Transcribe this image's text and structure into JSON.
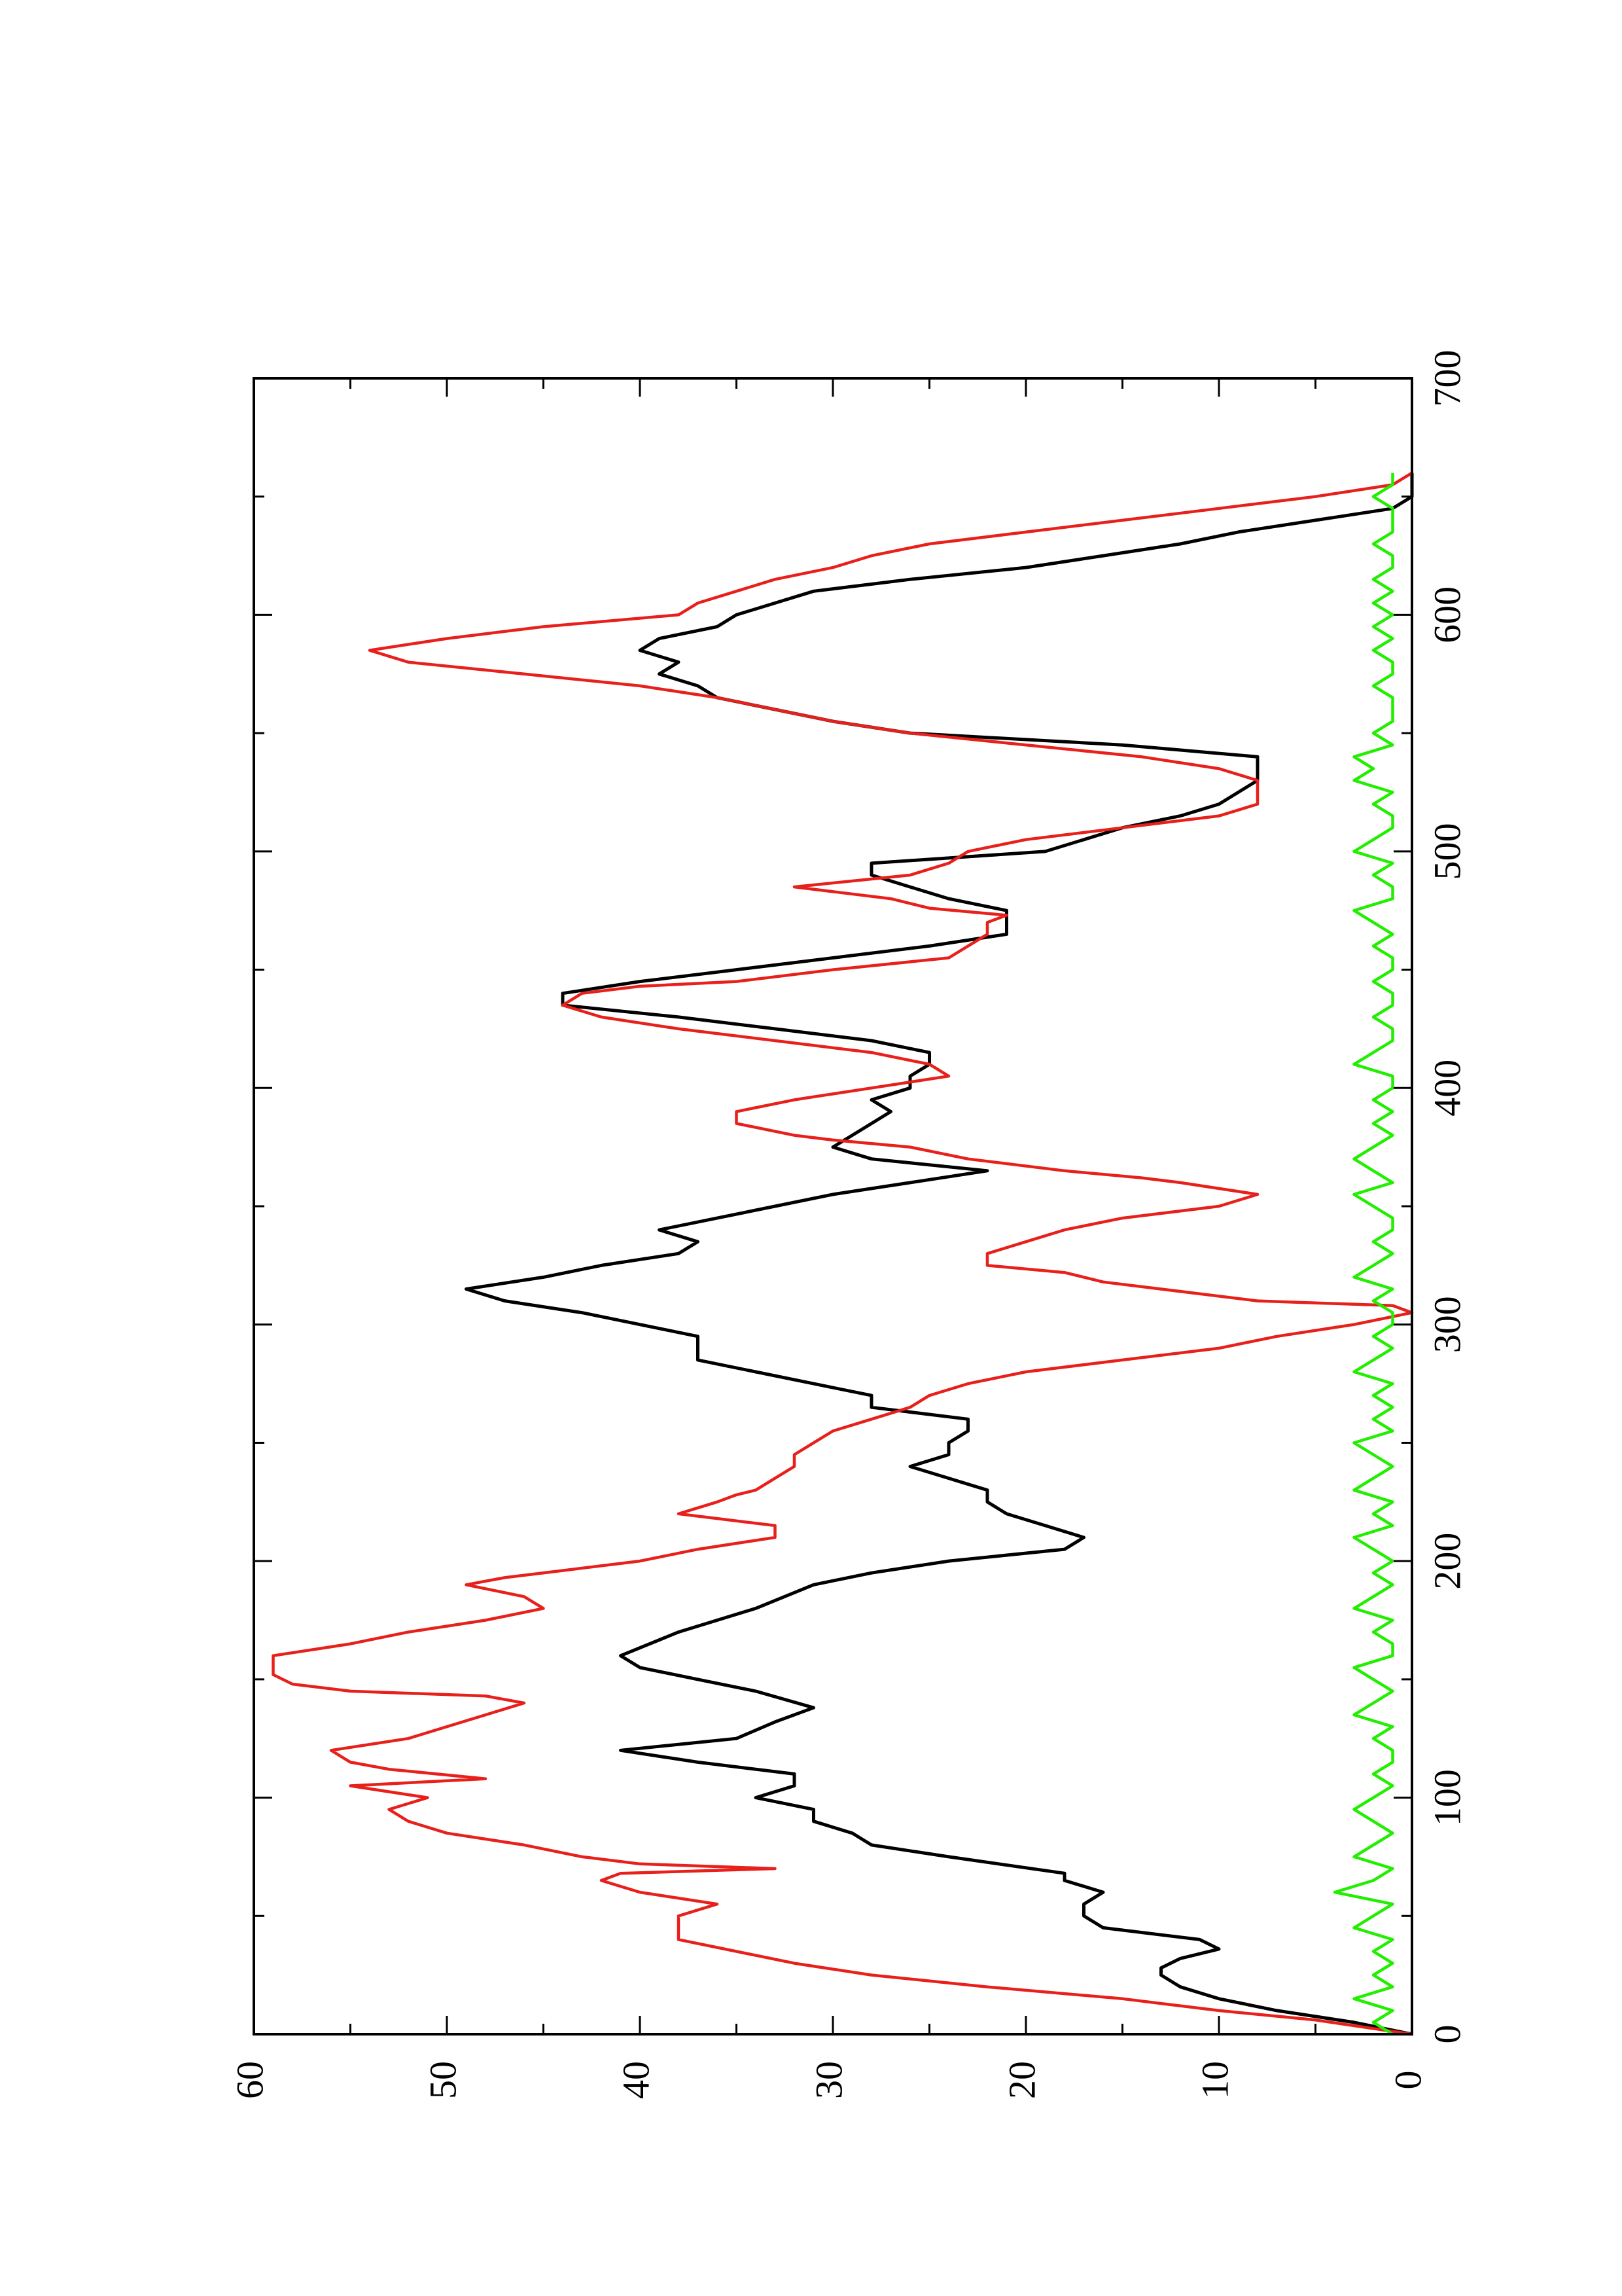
{
  "chart_data": {
    "type": "line",
    "orientation": "rotated-90-ccw",
    "title": "",
    "xlabel": "",
    "ylabel": "",
    "xlim": [
      0,
      700
    ],
    "ylim": [
      0,
      60
    ],
    "x_ticks": [
      0,
      100,
      200,
      300,
      400,
      500,
      600,
      700
    ],
    "x_tick_labels": [
      "0",
      "100",
      "200",
      "300",
      "400",
      "500",
      "600",
      "700"
    ],
    "y_ticks": [
      0,
      10,
      20,
      30,
      40,
      50,
      60
    ],
    "y_tick_labels": [
      "0",
      "10",
      "20",
      "30",
      "40",
      "50",
      "60"
    ],
    "grid": false,
    "legend": "none",
    "series": [
      {
        "color": "#000000",
        "x": [
          0,
          5,
          10,
          15,
          20,
          25,
          28,
          32,
          36,
          40,
          45,
          50,
          55,
          60,
          65,
          68,
          75,
          80,
          85,
          90,
          95,
          100,
          105,
          110,
          115,
          120,
          125,
          132,
          138,
          145,
          150,
          155,
          160,
          170,
          180,
          190,
          195,
          200,
          205,
          210,
          215,
          220,
          225,
          230,
          235,
          240,
          245,
          250,
          255,
          260,
          265,
          270,
          275,
          280,
          285,
          290,
          295,
          300,
          305,
          310,
          315,
          320,
          325,
          330,
          335,
          340,
          345,
          350,
          355,
          360,
          365,
          370,
          375,
          380,
          385,
          390,
          395,
          400,
          405,
          410,
          415,
          420,
          425,
          430,
          435,
          440,
          445,
          450,
          455,
          460,
          465,
          470,
          475,
          480,
          485,
          490,
          495,
          500,
          505,
          510,
          515,
          520,
          525,
          530,
          535,
          540,
          545,
          550,
          555,
          560,
          565,
          570,
          575,
          580,
          585,
          590,
          595,
          600,
          605,
          610,
          615,
          620,
          625,
          630,
          635,
          640,
          645,
          650,
          655,
          660
        ],
        "y": [
          0,
          3,
          7,
          10,
          12,
          13,
          13,
          12,
          10,
          11,
          16,
          17,
          17,
          16,
          18,
          18,
          24,
          28,
          29,
          31,
          31,
          34,
          32,
          32,
          37,
          41,
          35,
          33,
          31,
          34,
          37,
          40,
          41,
          38,
          34,
          31,
          28,
          24,
          18,
          17,
          19,
          21,
          22,
          22,
          24,
          26,
          24,
          24,
          23,
          23,
          28,
          28,
          31,
          34,
          37,
          37,
          37,
          40,
          43,
          47,
          49,
          45,
          42,
          38,
          37,
          39,
          36,
          33,
          30,
          26,
          22,
          28,
          30,
          29,
          28,
          27,
          28,
          26,
          26,
          25,
          25,
          28,
          33,
          38,
          44,
          44,
          40,
          35,
          30,
          25,
          21,
          21,
          21,
          24,
          26,
          28,
          28,
          19,
          17,
          15,
          12,
          10,
          9,
          8,
          8,
          8,
          15,
          26,
          30,
          33,
          36,
          37,
          39,
          38,
          40,
          39,
          36,
          35,
          33,
          31,
          26,
          20,
          16,
          12,
          9,
          5,
          1,
          0,
          0,
          0
        ]
      },
      {
        "color": "#e8201c",
        "x": [
          0,
          6,
          10,
          15,
          20,
          25,
          30,
          35,
          40,
          45,
          50,
          55,
          60,
          65,
          68,
          70,
          72,
          75,
          80,
          85,
          90,
          95,
          100,
          105,
          108,
          112,
          115,
          120,
          125,
          130,
          135,
          140,
          143,
          145,
          148,
          152,
          155,
          160,
          165,
          170,
          175,
          180,
          185,
          190,
          193,
          196,
          200,
          205,
          210,
          215,
          220,
          225,
          228,
          230,
          235,
          240,
          245,
          250,
          255,
          260,
          265,
          270,
          275,
          280,
          285,
          290,
          295,
          300,
          305,
          308,
          310,
          315,
          318,
          322,
          325,
          330,
          335,
          340,
          345,
          350,
          355,
          360,
          362,
          365,
          370,
          375,
          378,
          380,
          385,
          390,
          395,
          400,
          405,
          410,
          415,
          420,
          425,
          430,
          435,
          440,
          443,
          445,
          450,
          455,
          460,
          465,
          470,
          473,
          476,
          480,
          483,
          485,
          490,
          495,
          500,
          505,
          510,
          515,
          520,
          525,
          530,
          535,
          540,
          545,
          550,
          555,
          560,
          565,
          570,
          575,
          580,
          585,
          590,
          595,
          600,
          605,
          610,
          615,
          620,
          625,
          630,
          635,
          640,
          645,
          650,
          655,
          660
        ],
        "y": [
          0,
          5,
          10,
          15,
          22,
          28,
          32,
          35,
          38,
          38,
          38,
          36,
          40,
          42,
          41,
          33,
          40,
          43,
          46,
          50,
          52,
          53,
          51,
          55,
          48,
          53,
          55,
          56,
          52,
          50,
          48,
          46,
          48,
          55,
          58,
          59,
          59,
          59,
          55,
          52,
          48,
          45,
          46,
          49,
          47,
          44,
          40,
          37,
          33,
          33,
          38,
          36,
          35,
          34,
          33,
          32,
          32,
          31,
          30,
          28,
          26,
          25,
          23,
          20,
          15,
          10,
          7,
          3,
          0,
          1,
          8,
          13,
          16,
          18,
          22,
          22,
          20,
          18,
          15,
          10,
          8,
          12,
          14,
          18,
          23,
          26,
          30,
          32,
          35,
          35,
          32,
          28,
          24,
          25,
          28,
          33,
          38,
          42,
          44,
          43,
          40,
          35,
          30,
          24,
          23,
          22,
          22,
          21,
          25,
          27,
          30,
          32,
          26,
          24,
          23,
          20,
          15,
          10,
          8,
          8,
          8,
          10,
          14,
          20,
          26,
          30,
          33,
          36,
          40,
          46,
          52,
          54,
          50,
          45,
          38,
          37,
          35,
          33,
          30,
          28,
          25,
          20,
          15,
          10,
          5,
          1,
          0
        ]
      },
      {
        "color": "#22ee00",
        "x": [
          0,
          5,
          10,
          15,
          20,
          25,
          30,
          35,
          40,
          45,
          50,
          55,
          60,
          65,
          70,
          75,
          80,
          85,
          90,
          95,
          100,
          105,
          110,
          115,
          120,
          125,
          130,
          135,
          140,
          145,
          150,
          155,
          160,
          165,
          170,
          175,
          180,
          185,
          190,
          195,
          200,
          205,
          210,
          215,
          220,
          225,
          230,
          235,
          240,
          245,
          250,
          255,
          260,
          265,
          270,
          275,
          280,
          285,
          290,
          295,
          300,
          305,
          310,
          315,
          320,
          325,
          330,
          335,
          340,
          345,
          350,
          355,
          360,
          365,
          370,
          375,
          380,
          385,
          390,
          395,
          400,
          405,
          410,
          415,
          420,
          425,
          430,
          435,
          440,
          445,
          450,
          455,
          460,
          465,
          470,
          475,
          480,
          485,
          490,
          495,
          500,
          505,
          510,
          515,
          520,
          525,
          530,
          535,
          540,
          545,
          550,
          555,
          560,
          565,
          570,
          575,
          580,
          585,
          590,
          595,
          600,
          605,
          610,
          615,
          620,
          625,
          630,
          635,
          640,
          645,
          650,
          655,
          660
        ],
        "y": [
          1,
          2,
          1,
          3,
          1,
          2,
          1,
          2,
          1,
          3,
          2,
          1,
          4,
          2,
          1,
          3,
          2,
          1,
          2,
          3,
          2,
          1,
          2,
          1,
          1,
          2,
          1,
          3,
          2,
          1,
          2,
          3,
          1,
          1,
          2,
          1,
          3,
          2,
          1,
          2,
          1,
          2,
          3,
          1,
          2,
          1,
          3,
          2,
          1,
          2,
          3,
          1,
          2,
          1,
          2,
          1,
          3,
          2,
          1,
          2,
          1,
          1,
          2,
          1,
          3,
          2,
          1,
          2,
          1,
          1,
          2,
          3,
          1,
          2,
          3,
          2,
          1,
          2,
          1,
          2,
          1,
          1,
          3,
          2,
          1,
          1,
          2,
          1,
          1,
          2,
          1,
          1,
          2,
          1,
          2,
          3,
          1,
          1,
          2,
          1,
          3,
          2,
          1,
          1,
          2,
          1,
          3,
          2,
          3,
          1,
          2,
          1,
          1,
          1,
          2,
          1,
          1,
          2,
          1,
          2,
          1,
          2,
          1,
          2,
          1,
          1,
          2,
          1,
          1,
          1,
          2,
          1,
          1
        ]
      }
    ]
  }
}
